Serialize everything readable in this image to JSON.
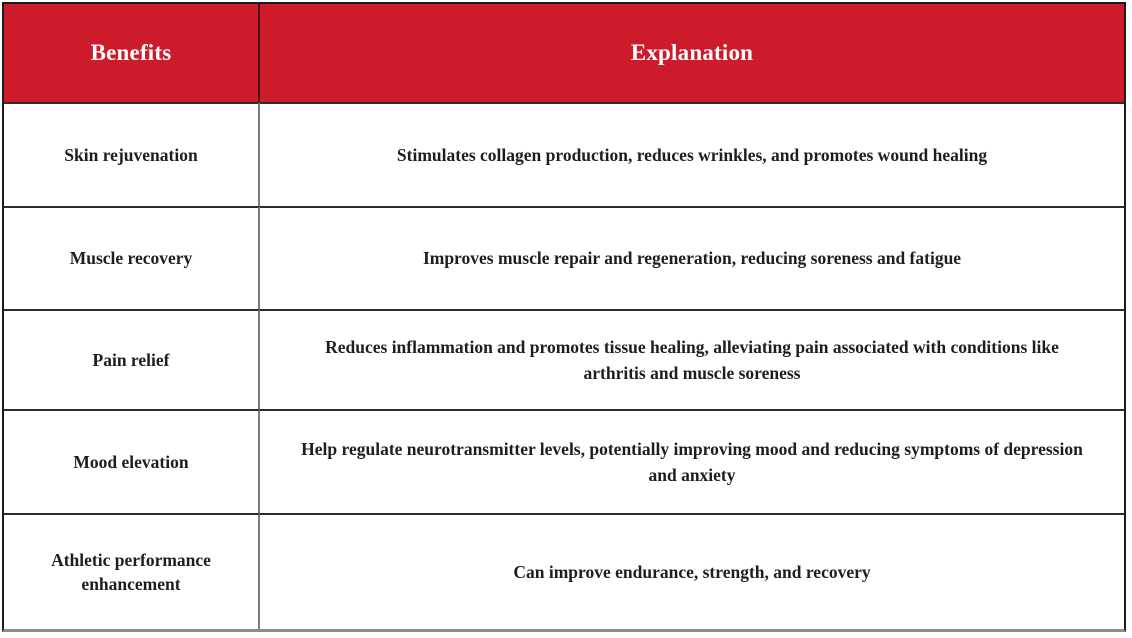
{
  "table": {
    "header": {
      "benefits": "Benefits",
      "explanation": "Explanation"
    },
    "rows": [
      {
        "benefit": "Skin rejuvenation",
        "explanation": "Stimulates collagen production, reduces wrinkles, and promotes wound healing"
      },
      {
        "benefit": "Muscle recovery",
        "explanation": "Improves muscle repair and regeneration, reducing soreness and fatigue"
      },
      {
        "benefit": "Pain relief",
        "explanation": "Reduces inflammation and promotes tissue healing, alleviating pain associated with conditions like arthritis and muscle soreness"
      },
      {
        "benefit": "Mood elevation",
        "explanation": "Help regulate neurotransmitter levels, potentially improving mood and reducing symptoms of depression and anxiety"
      },
      {
        "benefit": "Athletic performance enhancement",
        "explanation": "Can improve endurance, strength, and recovery"
      }
    ],
    "colors": {
      "header_bg": "#ce1b2b",
      "header_text": "#ffffff",
      "body_text": "#1e1e1e",
      "row_divider": "#2d2d2d",
      "column_divider": "#7d7d7d",
      "outer_border": "#1c1c1c",
      "bottom_border": "#8d8d8d"
    }
  }
}
